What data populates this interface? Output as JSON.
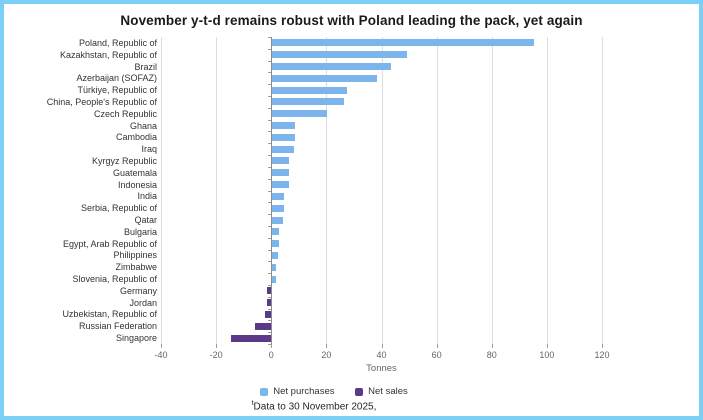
{
  "frame": {
    "border_color": "#7cd0f5",
    "background": "#ffffff"
  },
  "title": "November y-t-d remains robust with Poland leading the pack, yet again",
  "chart_data": {
    "type": "bar",
    "orientation": "horizontal",
    "title": "November y-t-d remains robust with Poland leading the pack, yet again",
    "xlabel": "Tonnes",
    "ylabel": "",
    "xlim": [
      -40,
      120
    ],
    "xticks": [
      -40,
      -20,
      0,
      20,
      40,
      60,
      80,
      100,
      120
    ],
    "grid": true,
    "legend_position": "bottom",
    "positive_series_name": "Net purchases",
    "negative_series_name": "Net sales",
    "positive_color": "#7cb5ec",
    "negative_color": "#5b3a8a",
    "categories": [
      "Poland, Republic of",
      "Kazakhstan, Republic of",
      "Brazil",
      "Azerbaijan (SOFAZ)",
      "Türkiye, Republic of",
      "China, People's Republic of",
      "Czech Republic",
      "Ghana",
      "Cambodia",
      "Iraq",
      "Kyrgyz Republic",
      "Guatemala",
      "Indonesia",
      "India",
      "Serbia, Republic of",
      "Qatar",
      "Bulgaria",
      "Egypt, Arab Republic of",
      "Philippines",
      "Zimbabwe",
      "Slovenia, Republic of",
      "Germany",
      "Jordan",
      "Uzbekistan, Republic of",
      "Russian Federation",
      "Singapore"
    ],
    "values": [
      95,
      49,
      43,
      38,
      27,
      26,
      20,
      8.2,
      8.1,
      8,
      6.2,
      6.1,
      6,
      4.4,
      4.2,
      4,
      2.4,
      2.3,
      2.2,
      1.3,
      1.2,
      -1.4,
      -1.5,
      -2.3,
      -6,
      -14.5
    ]
  },
  "legend": {
    "items": [
      {
        "label": "Net purchases",
        "color": "#7cb5ec"
      },
      {
        "label": "Net sales",
        "color": "#5b3a8a"
      }
    ]
  },
  "footnote": {
    "superscript": "t",
    "text": "Data to 30 November 2025,"
  }
}
